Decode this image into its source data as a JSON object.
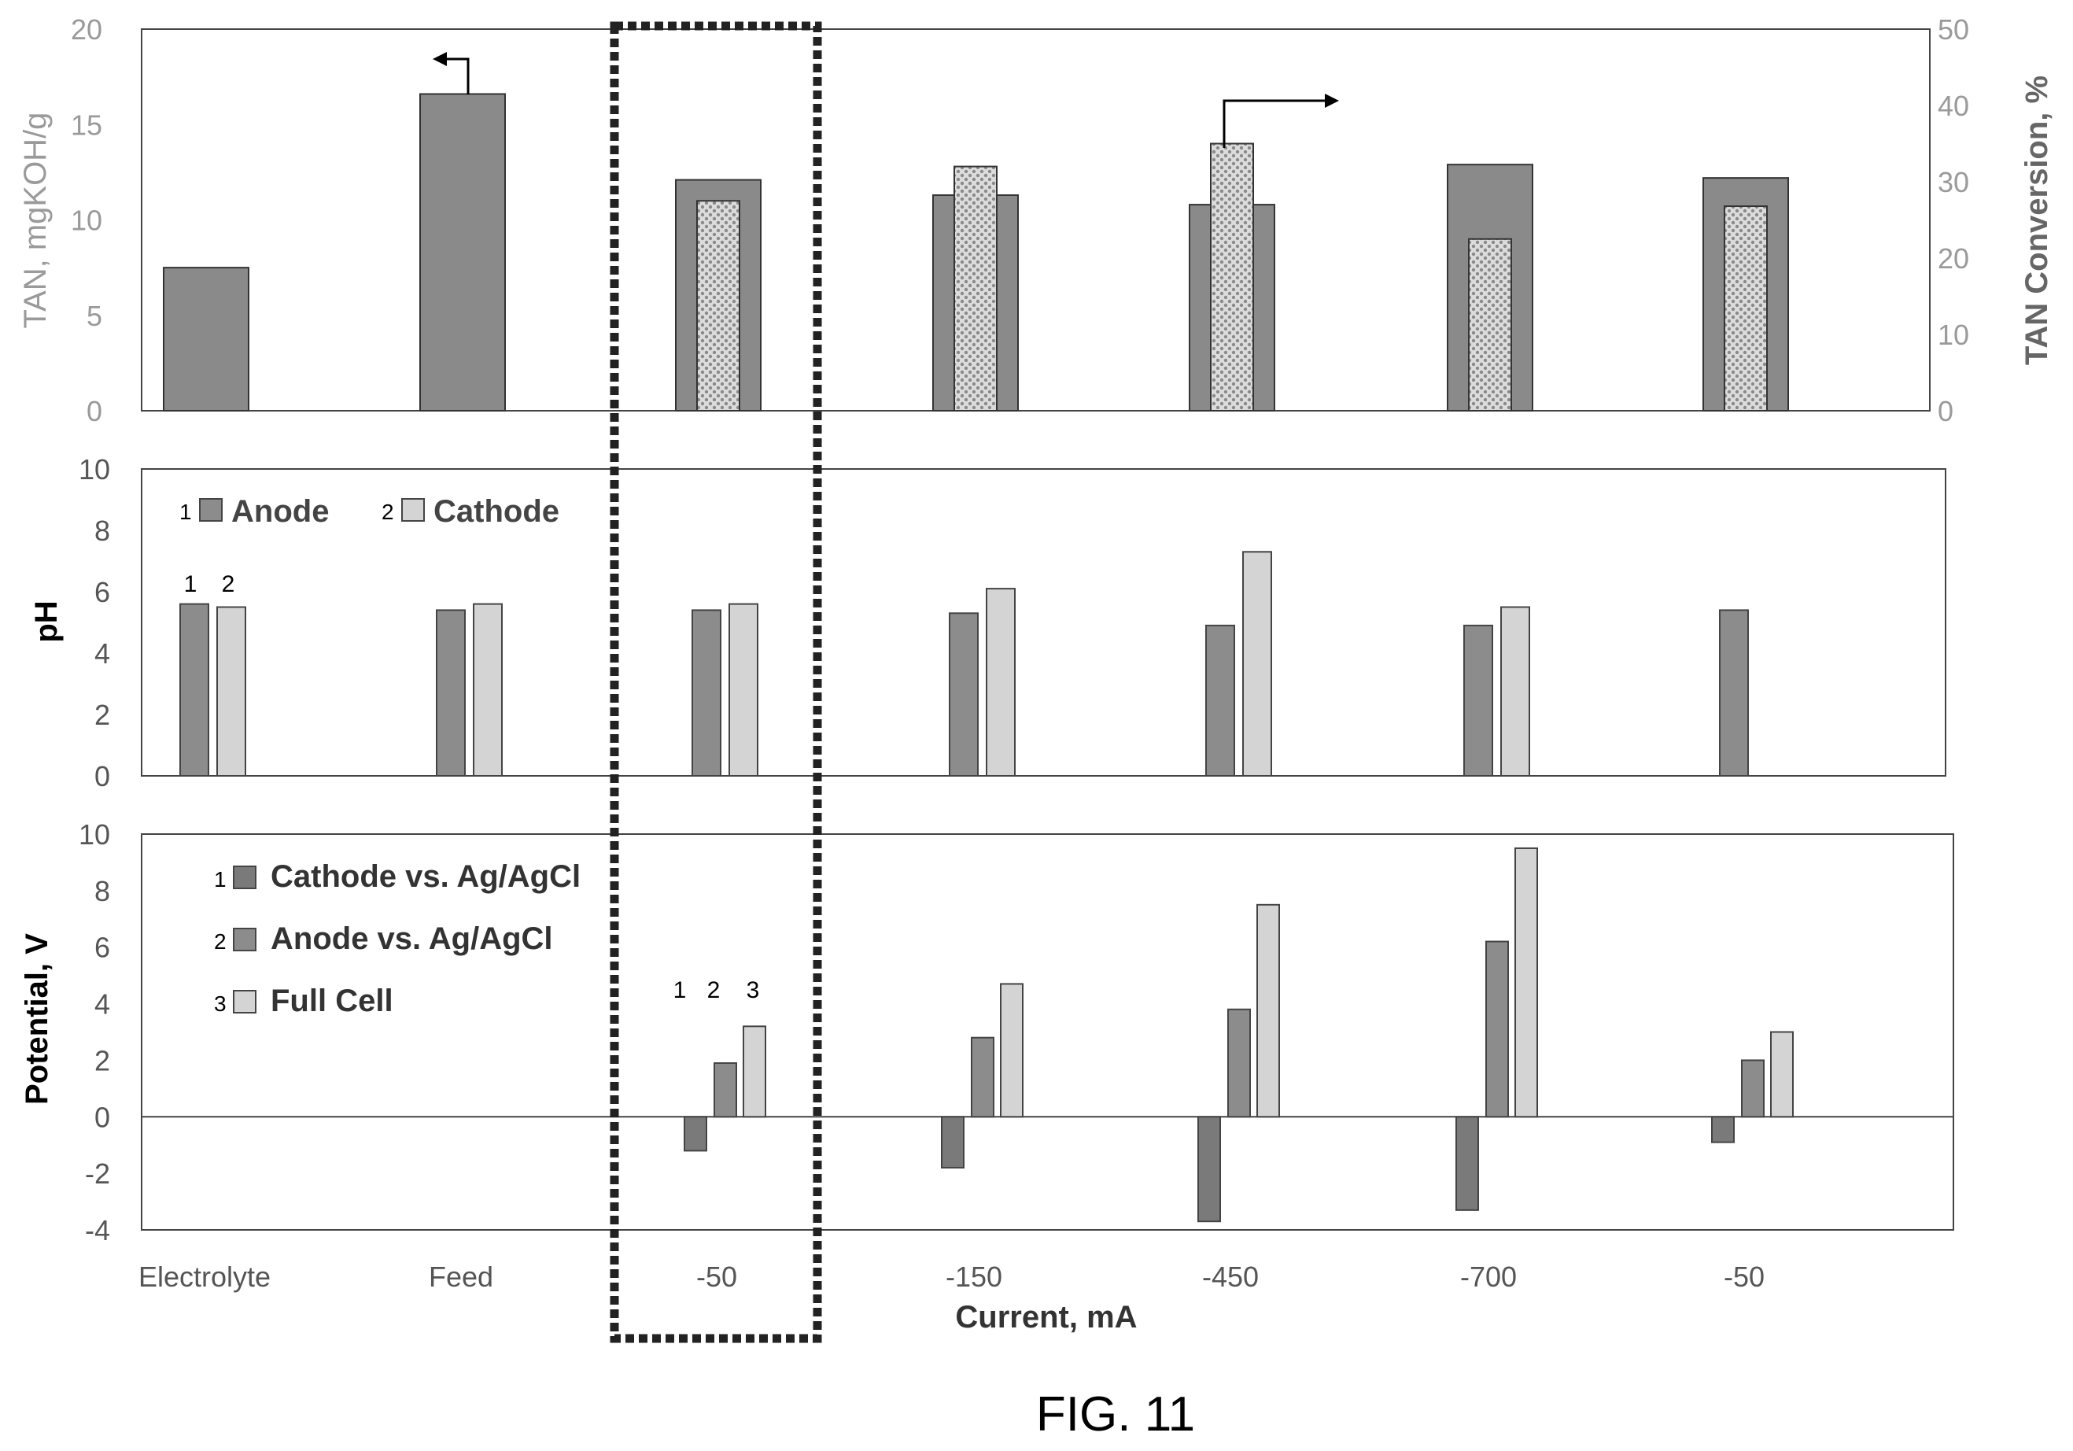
{
  "figure_caption": "FIG. 11",
  "x_axis_title": "Current, mA",
  "colors": {
    "anode_bar": "#8c8c8c",
    "cathode_bar": "#d4d4d4",
    "cathode_potential_bar": "#7a7a7a",
    "tan_bar": "#8a8a8a",
    "conversion_bar": "#cfcfcf",
    "gray_label": "#9a9a9a",
    "axis_text": "#555555",
    "frame": "#444444"
  },
  "chart_data": [
    {
      "type": "bar",
      "panel": "top",
      "categories": [
        "Electrolyte",
        "Feed",
        "-50",
        "-150",
        "-450",
        "-700",
        "-50"
      ],
      "ylabel": "TAN, mgKOH/g",
      "ylabel_right": "TAN Conversion, %",
      "ylim": [
        0,
        20
      ],
      "yticks": [
        "0",
        "5",
        "10",
        "15",
        "20"
      ],
      "ylim_right": [
        0,
        50
      ],
      "yticks_right": [
        "0",
        "10",
        "20",
        "30",
        "40",
        "50"
      ],
      "series": [
        {
          "values": [
            7.5,
            16.6,
            12.1,
            11.3,
            10.8,
            12.9,
            12.2
          ],
          "axis": "left"
        },
        {
          "values": [
            null,
            null,
            27.5,
            32.0,
            35.0,
            22.5,
            26.8
          ],
          "axis": "right"
        }
      ]
    },
    {
      "type": "bar",
      "panel": "middle",
      "categories": [
        "Electrolyte",
        "Feed",
        "-50",
        "-150",
        "-450",
        "-700",
        "-50"
      ],
      "ylabel": "pH",
      "ylim": [
        0,
        10
      ],
      "yticks": [
        "0",
        "2",
        "4",
        "6",
        "8",
        "10"
      ],
      "legend": [
        {
          "index": "1",
          "label": "Anode"
        },
        {
          "index": "2",
          "label": "Cathode"
        }
      ],
      "bar_number_labels": [
        "1",
        "2"
      ],
      "series": [
        {
          "name": "Anode",
          "values": [
            5.6,
            5.4,
            5.4,
            5.3,
            4.9,
            4.9,
            5.4
          ]
        },
        {
          "name": "Cathode",
          "values": [
            5.5,
            5.6,
            5.6,
            6.1,
            7.3,
            5.5,
            null
          ]
        }
      ]
    },
    {
      "type": "bar",
      "panel": "bottom",
      "categories": [
        "Electrolyte",
        "Feed",
        "-50",
        "-150",
        "-450",
        "-700",
        "-50"
      ],
      "ylabel": "Potential, V",
      "ylim": [
        -4,
        10
      ],
      "yticks": [
        "-4",
        "-2",
        "0",
        "2",
        "4",
        "6",
        "8",
        "10"
      ],
      "legend": [
        {
          "index": "1",
          "label": "Cathode vs. Ag/AgCl"
        },
        {
          "index": "2",
          "label": "Anode vs. Ag/AgCl"
        },
        {
          "index": "3",
          "label": "Full Cell"
        }
      ],
      "bar_number_labels": [
        "1",
        "2",
        "3"
      ],
      "series": [
        {
          "name": "Cathode vs. Ag/AgCl",
          "values": [
            null,
            null,
            -1.2,
            -1.8,
            -3.7,
            -3.3,
            -0.9
          ]
        },
        {
          "name": "Anode vs. Ag/AgCl",
          "values": [
            null,
            null,
            1.9,
            2.8,
            3.8,
            6.2,
            2.0
          ]
        },
        {
          "name": "Full Cell",
          "values": [
            null,
            null,
            3.2,
            4.7,
            7.5,
            9.5,
            3.0
          ]
        }
      ]
    }
  ]
}
